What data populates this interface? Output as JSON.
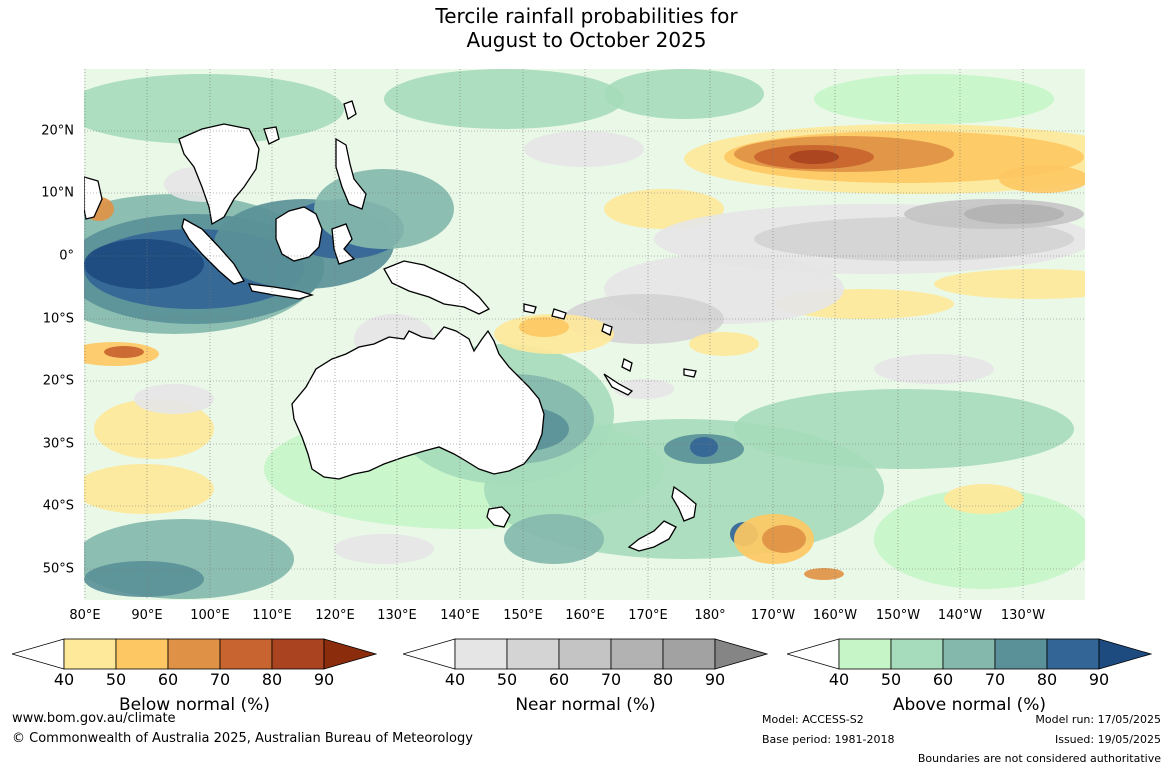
{
  "title": {
    "line1": "Tercile rainfall probabilities for",
    "line2": "August to October 2025"
  },
  "map": {
    "lat_labels": [
      "20°N",
      "10°N",
      "0°",
      "10°S",
      "20°S",
      "30°S",
      "40°S",
      "50°S"
    ],
    "lon_labels": [
      "80°E",
      "90°E",
      "100°E",
      "110°E",
      "120°E",
      "130°E",
      "140°E",
      "150°E",
      "160°E",
      "170°E",
      "180°",
      "170°W",
      "160°W",
      "150°W",
      "140°W",
      "130°W"
    ],
    "colors": {
      "below": [
        "#fee89a",
        "#fdc863",
        "#df9245",
        "#c8642f",
        "#a94320",
        "#8b2c0d"
      ],
      "near": [
        "#e5e5e5",
        "#d4d4d4",
        "#c4c4c4",
        "#b2b2b2",
        "#a2a2a2",
        "#858585"
      ],
      "above": [
        "#c6f5c7",
        "#a6dbbb",
        "#84b8ac",
        "#5a9198",
        "#346597",
        "#1d4b80"
      ],
      "land": "#ffffff",
      "coast": "#000000"
    }
  },
  "legends": [
    {
      "id": "below",
      "title": "Below normal (%)",
      "ticks": [
        "40",
        "50",
        "60",
        "70",
        "80",
        "90"
      ]
    },
    {
      "id": "near",
      "title": "Near normal (%)",
      "ticks": [
        "40",
        "50",
        "60",
        "70",
        "80",
        "90"
      ]
    },
    {
      "id": "above",
      "title": "Above normal (%)",
      "ticks": [
        "40",
        "50",
        "60",
        "70",
        "80",
        "90"
      ]
    }
  ],
  "footer": {
    "website": "www.bom.gov.au/climate",
    "copyright": "© Commonwealth of Australia 2025, Australian Bureau of Meteorology",
    "model": "Model: ACCESS-S2",
    "base_period": "Base period: 1981-2018",
    "model_run": "Model run: 17/05/2025",
    "issued": "Issued: 19/05/2025",
    "disclaimer": "Boundaries are not considered authoritative"
  }
}
